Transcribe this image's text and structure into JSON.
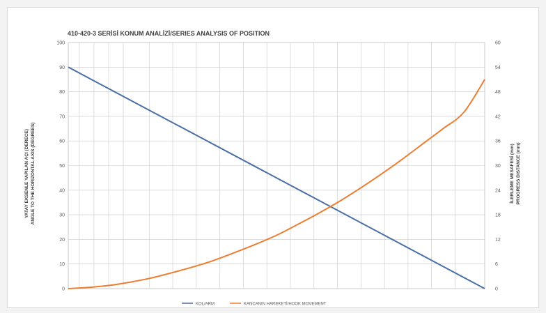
{
  "chart_data": {
    "type": "line",
    "title": "410-420-3 SERİSİ KONUM ANALİZİ/SERIES ANALYSIS OF POSITION",
    "ylabel_left_line1": "YATAY EKSENLE YAPILAN AÇI (DERECE)",
    "ylabel_left_line2": "ANGLE TO THE HORIZONTAL AXIS (DEGREES)",
    "ylabel_right_line1": "İLERLEME MESAFESİ (mm)",
    "ylabel_right_line2": "PROGRESS DISTANCE (mm)",
    "ylim_left": [
      0,
      100
    ],
    "ylim_right": [
      0,
      60
    ],
    "yticks_left": [
      "0",
      "10",
      "20",
      "30",
      "40",
      "50",
      "60",
      "70",
      "80",
      "90",
      "100"
    ],
    "yticks_right": [
      "0",
      "6",
      "12",
      "18",
      "24",
      "30",
      "36",
      "42",
      "48",
      "54",
      "60"
    ],
    "x_range": [
      0,
      10
    ],
    "grid": true,
    "legend_position": "bottom",
    "series": [
      {
        "name": "KOL/ARM",
        "axis": "left",
        "color": "#4a6fa5",
        "x": [
          0,
          10
        ],
        "values": [
          90,
          0
        ]
      },
      {
        "name": "KANCANIN HAREKETİ/HOOK MOVEMENT",
        "axis": "right",
        "color": "#ed7d31",
        "x": [
          0,
          0.5,
          1,
          1.5,
          2,
          2.5,
          3,
          3.5,
          4,
          4.5,
          5,
          5.5,
          6,
          6.5,
          7,
          7.5,
          8,
          8.5,
          9,
          9.5,
          10
        ],
        "values": [
          0,
          0.3,
          0.8,
          1.6,
          2.6,
          3.9,
          5.3,
          6.9,
          8.8,
          10.8,
          13.0,
          15.6,
          18.3,
          21.2,
          24.4,
          27.8,
          31.4,
          35.2,
          39.0,
          43.0,
          51.0
        ]
      }
    ]
  }
}
